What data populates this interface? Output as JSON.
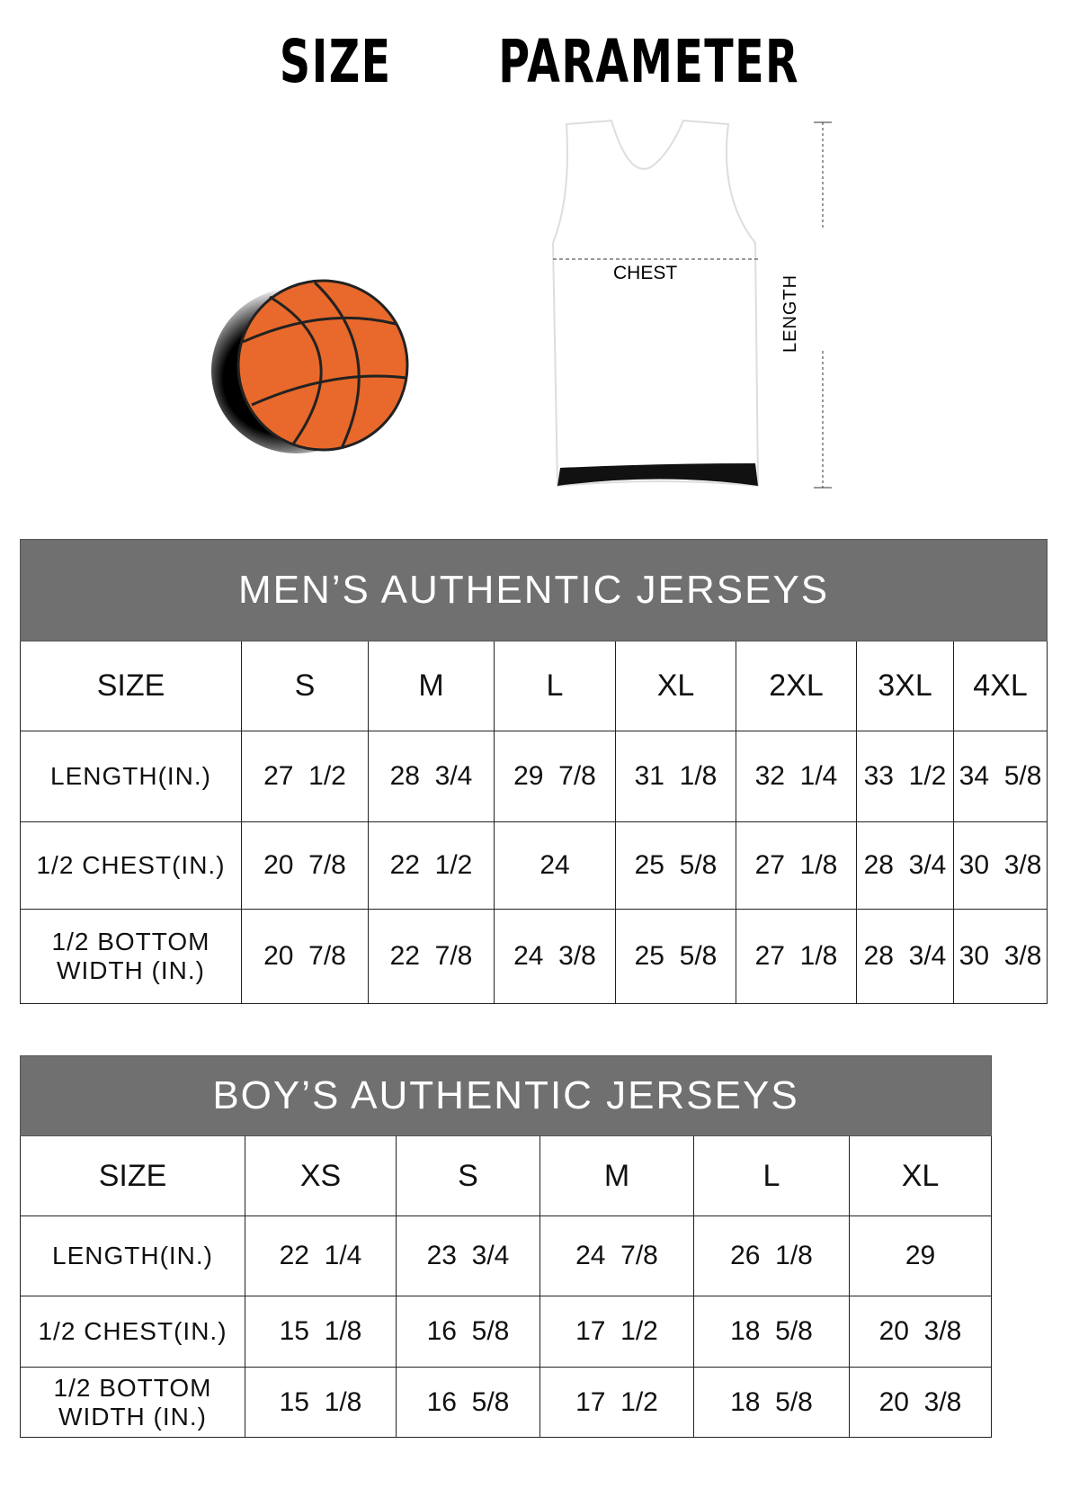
{
  "title": "SIZE   PARAMETER",
  "diagram": {
    "chest_label": "CHEST",
    "length_label": "LENGTH",
    "ball_color": "#e8692b"
  },
  "mens": {
    "heading": "MEN’S AUTHENTIC JERSEYS",
    "header_color": "#707070",
    "sizes_label": "SIZE",
    "sizes": [
      "S",
      "M",
      "L",
      "XL",
      "2XL",
      "3XL",
      "4XL"
    ],
    "rows": [
      {
        "label": "LENGTH(IN.)",
        "values": [
          "27  1/2",
          "28  3/4",
          "29  7/8",
          "31  1/8",
          "32  1/4",
          "33  1/2",
          "34  5/8"
        ]
      },
      {
        "label": "1/2 CHEST(IN.)",
        "values": [
          "20  7/8",
          "22  1/2",
          "24",
          "25  5/8",
          "27  1/8",
          "28  3/4",
          "30  3/8"
        ]
      },
      {
        "label": "1/2 BOTTOM WIDTH (IN.)",
        "values": [
          "20  7/8",
          "22  7/8",
          "24  3/8",
          "25  5/8",
          "27  1/8",
          "28  3/4",
          "30  3/8"
        ]
      }
    ]
  },
  "boys": {
    "heading": "BOY’S AUTHENTIC JERSEYS",
    "header_color": "#707070",
    "sizes_label": "SIZE",
    "sizes": [
      "XS",
      "S",
      "M",
      "L",
      "XL"
    ],
    "rows": [
      {
        "label": "LENGTH(IN.)",
        "values": [
          "22  1/4",
          "23  3/4",
          "24  7/8",
          "26  1/8",
          "29"
        ]
      },
      {
        "label": "1/2 CHEST(IN.)",
        "values": [
          "15  1/8",
          "16  5/8",
          "17  1/2",
          "18  5/8",
          "20  3/8"
        ]
      },
      {
        "label": "1/2 BOTTOM WIDTH (IN.)",
        "values": [
          "15  1/8",
          "16  5/8",
          "17  1/2",
          "18  5/8",
          "20  3/8"
        ]
      }
    ]
  }
}
